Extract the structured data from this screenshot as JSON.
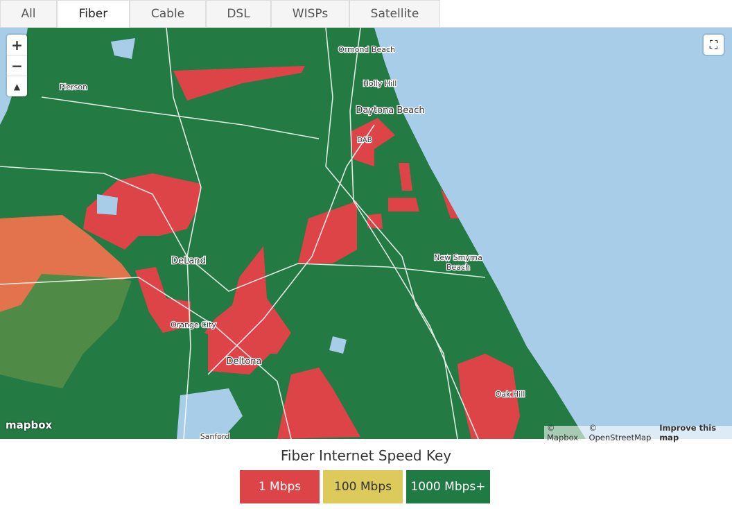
{
  "tabs": [
    {
      "label": "All"
    },
    {
      "label": "Fiber",
      "active": true
    },
    {
      "label": "Cable"
    },
    {
      "label": "DSL"
    },
    {
      "label": "WISPs"
    },
    {
      "label": "Satellite"
    }
  ],
  "map": {
    "controls": {
      "zoom_in": "+",
      "zoom_out": "−"
    },
    "places": [
      {
        "label": "Ormond Beach"
      },
      {
        "label": "Holly Hill"
      },
      {
        "label": "Daytona Beach"
      },
      {
        "label": "DAB"
      },
      {
        "label": "Pierson"
      },
      {
        "label": "DeLand"
      },
      {
        "label": "New Smyrna"
      },
      {
        "label": "Beach"
      },
      {
        "label": "Orange City"
      },
      {
        "label": "Deltona"
      },
      {
        "label": "Oak Hill"
      },
      {
        "label": "Sanford"
      }
    ],
    "logo": "mapbox",
    "attribution": [
      "© Mapbox",
      "© OpenStreetMap",
      "Improve this map"
    ]
  },
  "key": {
    "title": "Fiber Internet Speed Key",
    "items": [
      {
        "label": "1 Mbps",
        "color": "#dc4448"
      },
      {
        "label": "100 Mbps",
        "color": "#dccb5a"
      },
      {
        "label": "1000 Mbps+",
        "color": "#1f7a44"
      }
    ]
  }
}
